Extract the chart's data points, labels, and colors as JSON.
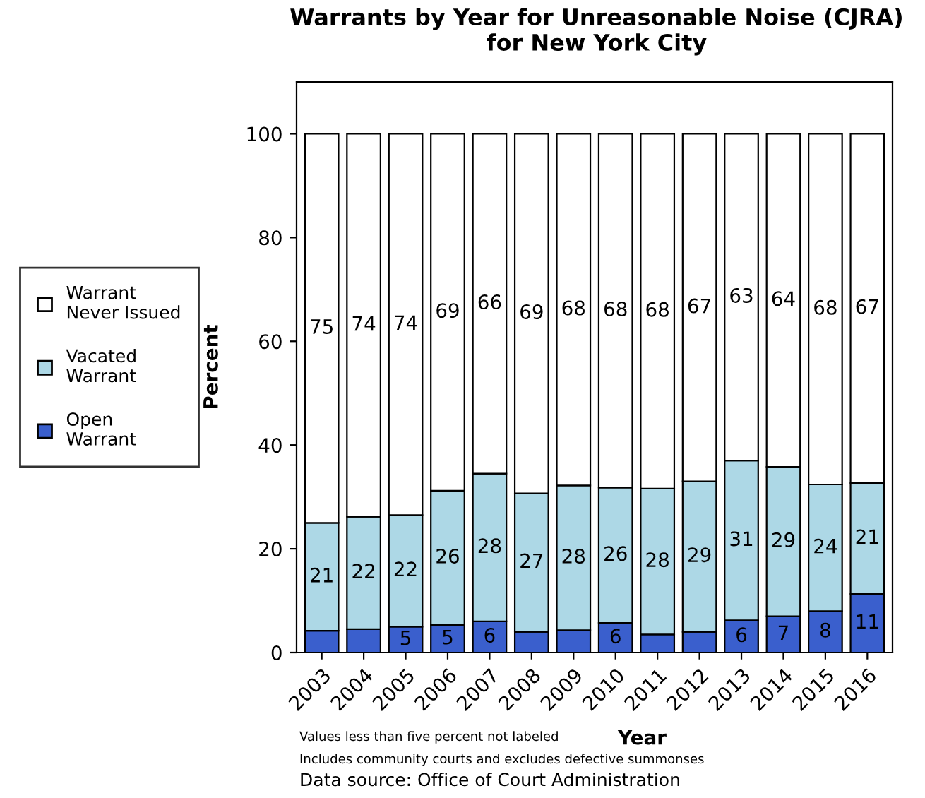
{
  "chart_data": {
    "type": "bar",
    "stacked": true,
    "title": "Warrants by Year for Unreasonable Noise (CJRA)\nfor New York City",
    "xlabel": "Year",
    "ylabel": "Percent",
    "categories": [
      "2003",
      "2004",
      "2005",
      "2006",
      "2007",
      "2008",
      "2009",
      "2010",
      "2011",
      "2012",
      "2013",
      "2014",
      "2015",
      "2016"
    ],
    "series": [
      {
        "name": "Open\nWarrant",
        "color": "#3a5fcd",
        "values": [
          4.2,
          4.5,
          5,
          5.3,
          6,
          4,
          4.3,
          5.7,
          3.5,
          4,
          6.2,
          7,
          8,
          11.3
        ],
        "value_labels": [
          null,
          null,
          "5",
          "5",
          "6",
          null,
          null,
          "6",
          null,
          null,
          "6",
          "7",
          "8",
          "11"
        ]
      },
      {
        "name": "Vacated\nWarrant",
        "color": "#add8e6",
        "values": [
          20.8,
          21.7,
          21.5,
          25.9,
          28.5,
          26.7,
          27.9,
          26.1,
          28.1,
          29,
          30.8,
          28.8,
          24.4,
          21.4
        ],
        "value_labels": [
          "21",
          "22",
          "22",
          "26",
          "28",
          "27",
          "28",
          "26",
          "28",
          "29",
          "31",
          "29",
          "24",
          "21"
        ]
      },
      {
        "name": "Warrant\nNever Issued",
        "color": "#ffffff",
        "values": [
          75,
          73.8,
          73.5,
          68.8,
          65.5,
          69.3,
          67.8,
          68.2,
          68.4,
          67,
          63,
          64.2,
          67.6,
          67.3
        ],
        "value_labels": [
          "75",
          "74",
          "74",
          "69",
          "66",
          "69",
          "68",
          "68",
          "68",
          "67",
          "63",
          "64",
          "68",
          "67"
        ]
      }
    ],
    "ylim": [
      0,
      110
    ],
    "yticks": [
      0,
      20,
      40,
      60,
      80,
      100
    ],
    "grid": false,
    "legend": "left",
    "annotations": [
      "Values less than five percent not labeled",
      "Includes community courts and excludes defective summonses",
      "Data source: Office of Court Administration"
    ]
  }
}
